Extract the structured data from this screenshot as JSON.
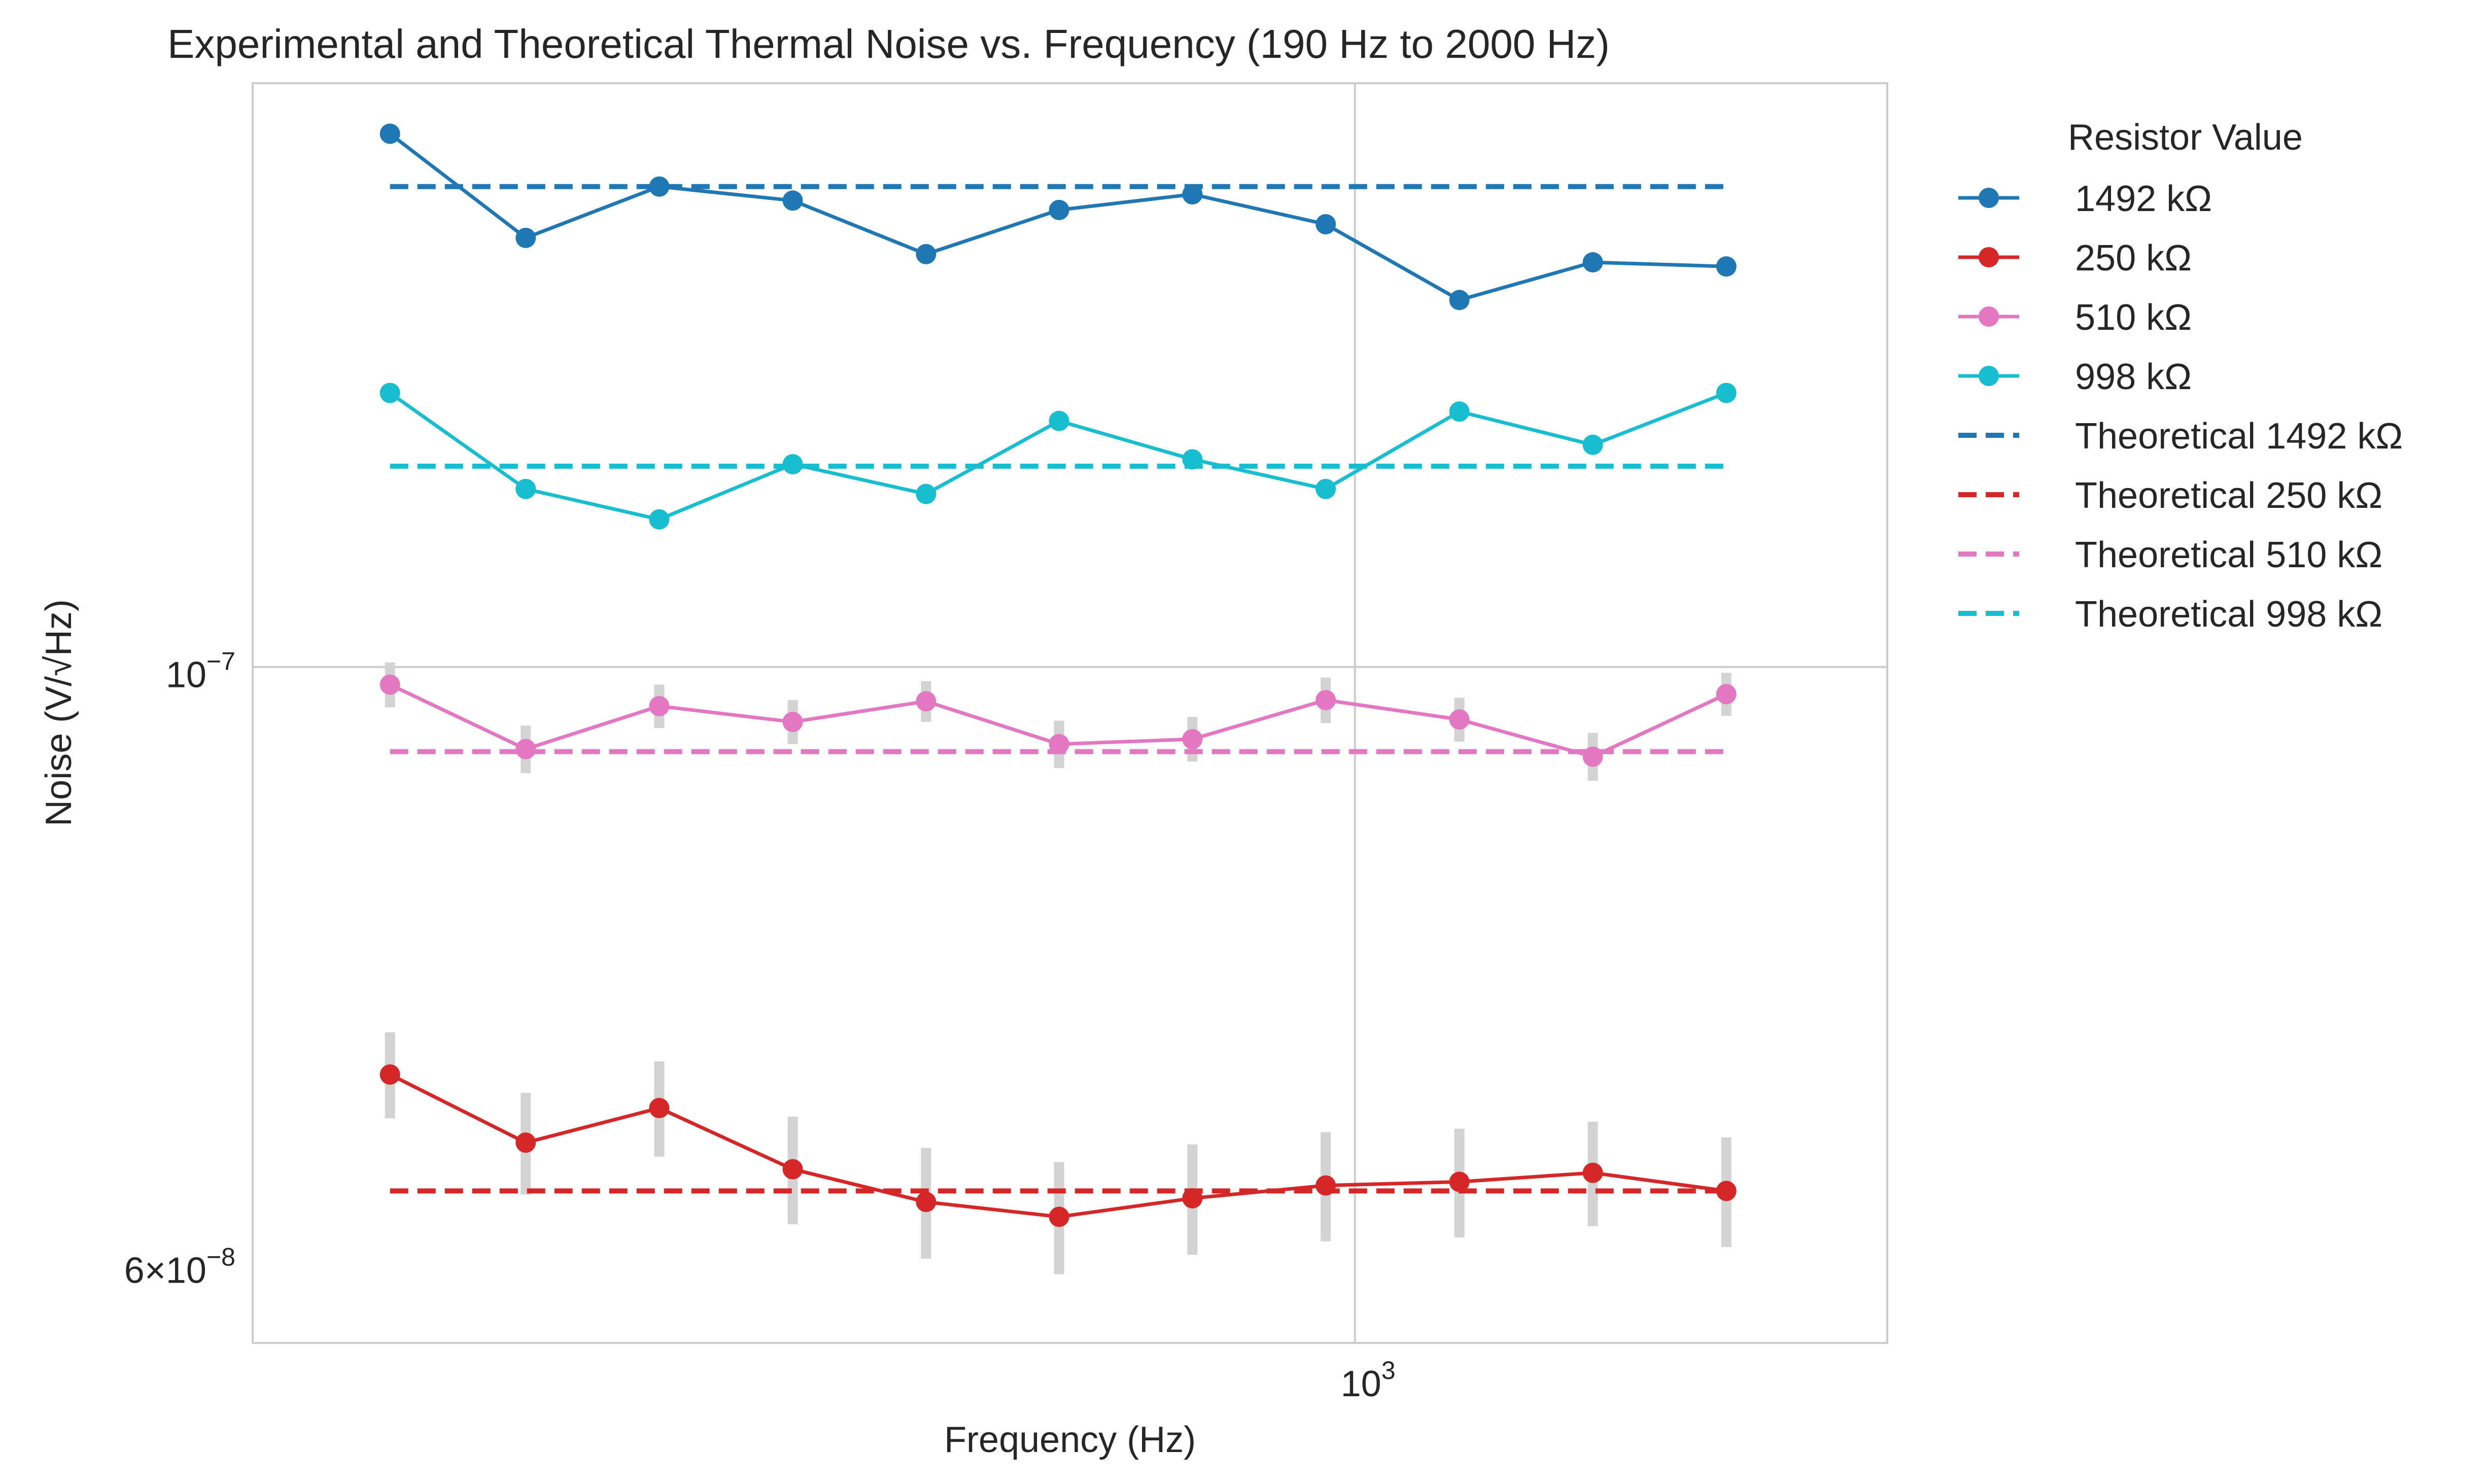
{
  "chart_data": {
    "type": "line",
    "title": "Experimental and Theoretical Thermal Noise vs. Frequency (190 Hz to 2000 Hz)",
    "xlabel": "Frequency (Hz)",
    "ylabel": "Noise (V/√Hz)",
    "x_scale": "log",
    "y_scale": "log",
    "xlim": [
      150,
      2500
    ],
    "ylim": [
      5.6e-08,
      1.65e-07
    ],
    "grid": true,
    "legend": {
      "title": "Resistor Value",
      "placement": "outside right, top"
    },
    "x_ticks": [
      {
        "value": 1000,
        "base": "10",
        "exp": "3"
      }
    ],
    "y_ticks": [
      {
        "value": 1e-07,
        "mantissa": "",
        "base": "10",
        "exp": "−7"
      },
      {
        "value": 6e-08,
        "mantissa": "6",
        "base": "10",
        "exp": "−8"
      }
    ],
    "x": [
      190,
      240,
      302,
      380,
      478,
      601,
      756,
      951,
      1197,
      1506,
      1895
    ],
    "series": [
      {
        "name": "1492 kΩ",
        "color": "#1f77b4",
        "values": [
          1.58e-07,
          1.445e-07,
          1.51e-07,
          1.492e-07,
          1.425e-07,
          1.48e-07,
          1.5e-07,
          1.462e-07,
          1.37e-07,
          1.415e-07,
          1.41e-07
        ],
        "errors": [
          8e-10,
          9e-10,
          8.5e-10,
          8.5e-10,
          9e-10,
          8e-10,
          8.5e-10,
          9e-10,
          9e-10,
          8.5e-10,
          8.5e-10
        ]
      },
      {
        "name": "250 kΩ",
        "color": "#d62728",
        "values": [
          7.05e-08,
          6.65e-08,
          6.85e-08,
          6.5e-08,
          6.32e-08,
          6.24e-08,
          6.34e-08,
          6.41e-08,
          6.43e-08,
          6.48e-08,
          6.38e-08
        ],
        "errors": [
          2.6e-09,
          2.9e-09,
          2.8e-09,
          3e-09,
          3e-09,
          3e-09,
          3e-09,
          3e-09,
          3e-09,
          2.9e-09,
          3e-09
        ]
      },
      {
        "name": "510 kΩ",
        "color": "#e377c2",
        "values": [
          9.85e-08,
          9.32e-08,
          9.67e-08,
          9.54e-08,
          9.71e-08,
          9.36e-08,
          9.4e-08,
          9.72e-08,
          9.56e-08,
          9.26e-08,
          9.77e-08
        ],
        "errors": [
          1.9e-09,
          1.9e-09,
          1.8e-09,
          1.8e-09,
          1.7e-09,
          1.9e-09,
          1.8e-09,
          1.9e-09,
          1.8e-09,
          1.9e-09,
          1.8e-09
        ]
      },
      {
        "name": "998 kΩ",
        "color": "#17becf",
        "values": [
          1.265e-07,
          1.165e-07,
          1.135e-07,
          1.19e-07,
          1.16e-07,
          1.235e-07,
          1.195e-07,
          1.165e-07,
          1.245e-07,
          1.21e-07,
          1.265e-07
        ],
        "errors": [
          8e-10,
          9e-10,
          9e-10,
          8.5e-10,
          8.5e-10,
          8.5e-10,
          8.5e-10,
          9e-10,
          8e-10,
          8.5e-10,
          8e-10
        ]
      }
    ],
    "theoretical": [
      {
        "name": "Theoretical 1492 kΩ",
        "color": "#1f77b4",
        "value": 1.51e-07
      },
      {
        "name": "Theoretical 250 kΩ",
        "color": "#d62728",
        "value": 6.38e-08
      },
      {
        "name": "Theoretical 510 kΩ",
        "color": "#e377c2",
        "value": 9.3e-08
      },
      {
        "name": "Theoretical 998 kΩ",
        "color": "#17becf",
        "value": 1.188e-07
      }
    ],
    "errorbar_color": "#d3d3d3"
  }
}
